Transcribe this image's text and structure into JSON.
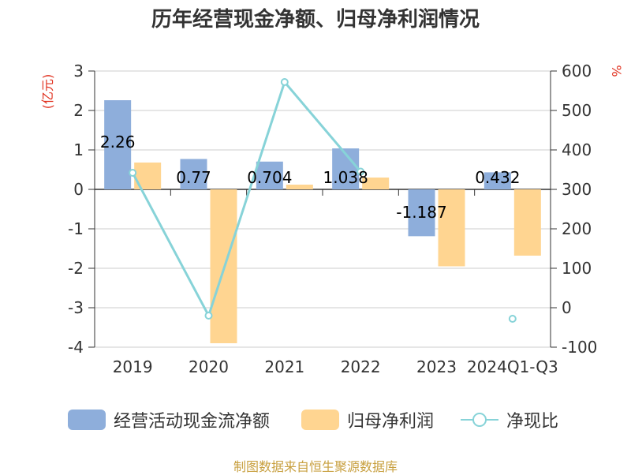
{
  "title": "历年经营现金净额、归母净利润情况",
  "source": "制图数据来自恒生聚源数据库",
  "left_axis_unit": "(亿元)",
  "right_axis_unit": "%",
  "colors": {
    "cash_flow": "#8eaedb",
    "net_profit": "#ffd591",
    "ratio": "#87d3d8",
    "grid": "#cccccc",
    "axis": "#333333"
  },
  "legend": [
    {
      "label": "经营活动现金流净额",
      "color": "#8eaedb",
      "kind": "bar"
    },
    {
      "label": "归母净利润",
      "color": "#ffd591",
      "kind": "bar"
    },
    {
      "label": "净现比",
      "color": "#87d3d8",
      "kind": "line"
    }
  ],
  "chart_data": {
    "type": "bar",
    "title": "历年经营现金净额、归母净利润情况",
    "categories": [
      "2019",
      "2020",
      "2021",
      "2022",
      "2023",
      "2024Q1-Q3"
    ],
    "left_axis": {
      "label": "(亿元)",
      "range": [
        -4,
        3
      ],
      "ticks": [
        3,
        2,
        1,
        0,
        -1,
        -2,
        -3,
        -4
      ]
    },
    "right_axis": {
      "label": "%",
      "range": [
        -100,
        600
      ],
      "ticks": [
        600,
        500,
        400,
        300,
        200,
        100,
        0,
        -100
      ]
    },
    "grid": true,
    "legend_position": "bottom",
    "series": [
      {
        "name": "经营活动现金流净额",
        "type": "bar",
        "axis": "left",
        "values": [
          2.26,
          0.77,
          0.704,
          1.038,
          -1.187,
          0.432
        ],
        "data_labels": [
          "2.26",
          "0.77",
          "0.704",
          "1.038",
          "-1.187",
          "0.432"
        ]
      },
      {
        "name": "归母净利润",
        "type": "bar",
        "axis": "left",
        "values": [
          0.68,
          -3.9,
          0.12,
          0.3,
          -1.95,
          -1.68
        ]
      },
      {
        "name": "净现比",
        "type": "line",
        "axis": "right",
        "values": [
          342,
          -20,
          572,
          345,
          null,
          -28
        ]
      }
    ]
  }
}
